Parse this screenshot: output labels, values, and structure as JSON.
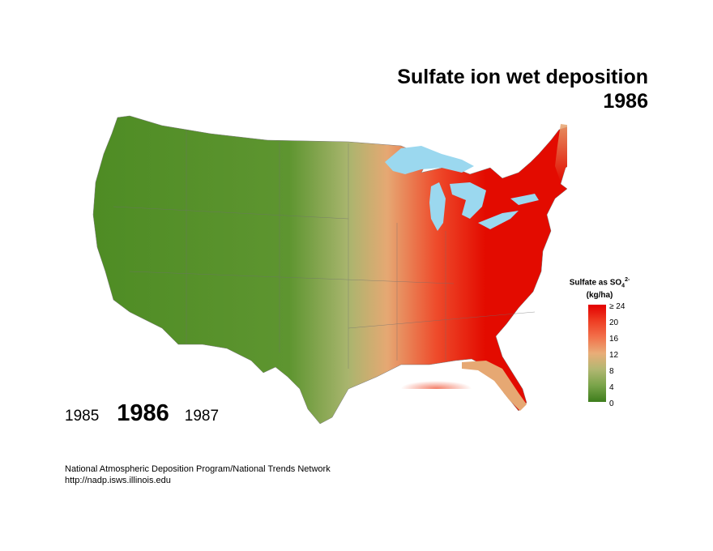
{
  "title": "Sulfate ion wet deposition",
  "year": "1986",
  "legend": {
    "title_prefix": "Sulfate as SO",
    "title_sub": "4",
    "title_sup": "2-",
    "unit": "(kg/ha)",
    "ticks": [
      "≥ 24",
      "20",
      "16",
      "12",
      "8",
      "4",
      "0"
    ],
    "colors": [
      "#e30000",
      "#ee3b21",
      "#f2704a",
      "#e9ad78",
      "#b3b772",
      "#7aa44a",
      "#3d7d1c"
    ]
  },
  "nav": {
    "prev_year": "1985",
    "current_year": "1986",
    "next_year": "1987"
  },
  "footer": {
    "line1": "National Atmospheric Deposition Program/National Trends Network",
    "line2": "http://nadp.isws.illinois.edu"
  },
  "map_colors": {
    "west": "#4e8c24",
    "plains": "#a9b56e",
    "transition": "#e6a873",
    "high": "#ee4b2b",
    "peak": "#e30b00",
    "lakes": "#9bd8ef"
  }
}
